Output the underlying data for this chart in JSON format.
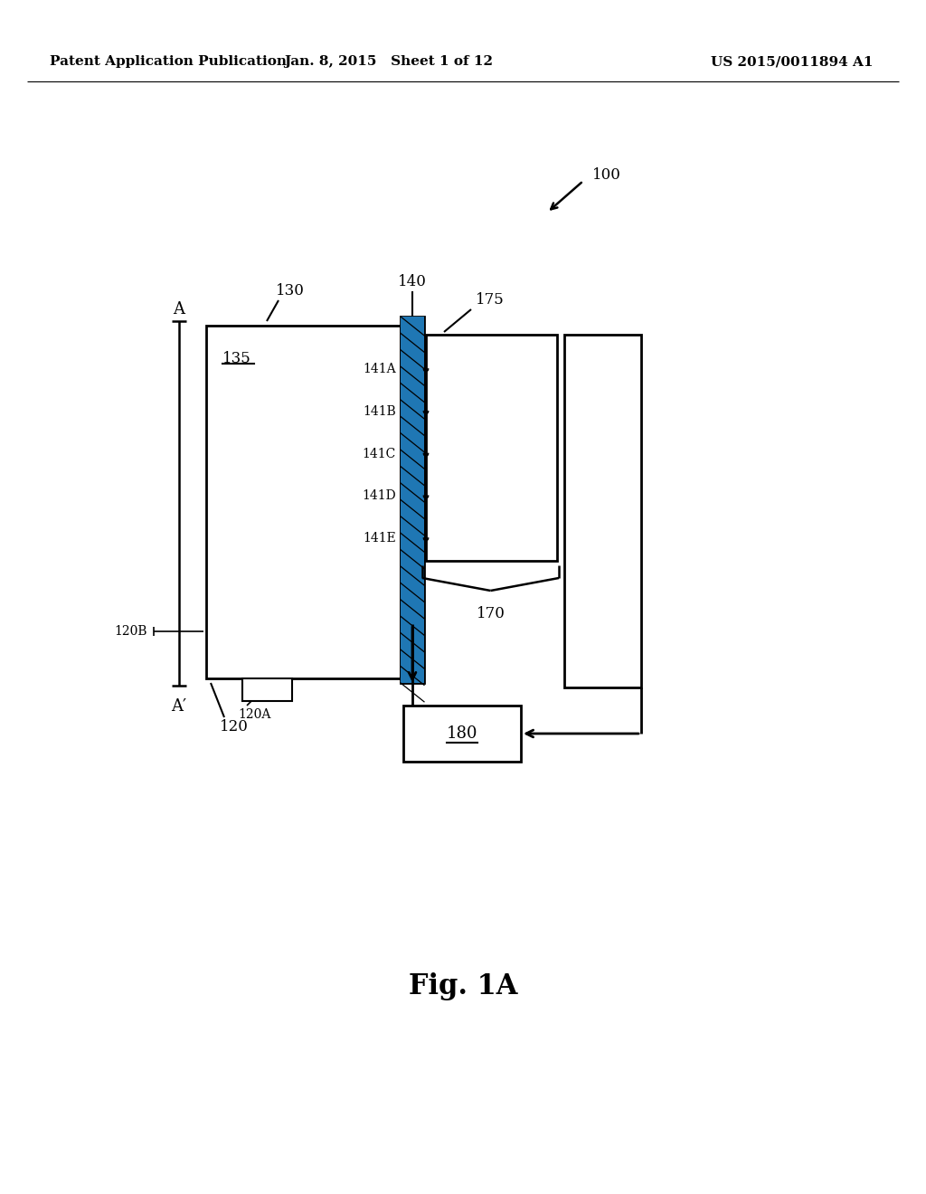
{
  "bg_color": "#ffffff",
  "line_color": "#000000",
  "header_left": "Patent Application Publication",
  "header_mid": "Jan. 8, 2015   Sheet 1 of 12",
  "header_right": "US 2015/0011894 A1",
  "fig_label": "Fig. 1A",
  "ref_100": "100",
  "ref_130": "130",
  "ref_135": "135",
  "ref_140": "140",
  "ref_175": "175",
  "ref_170": "170",
  "ref_180": "180",
  "ref_120": "120",
  "ref_120A": "120A",
  "ref_120B": "120B",
  "ref_141A": "141A",
  "ref_141B": "141B",
  "ref_141C": "141C",
  "ref_141D": "141D",
  "ref_141E": "141E",
  "ref_A": "A",
  "ref_Aprime": "A′"
}
